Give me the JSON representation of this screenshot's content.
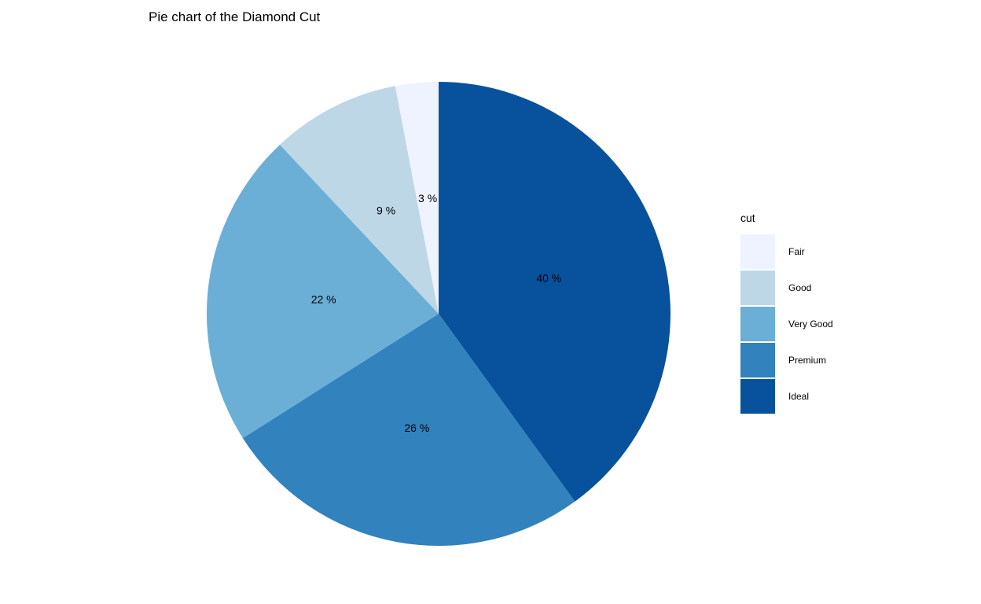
{
  "chart_data": {
    "type": "pie",
    "title": "Pie chart of the Diamond Cut",
    "legend_title": "cut",
    "legend_position": "right",
    "direction": "clockwise",
    "start": "top",
    "slices": [
      {
        "name": "Ideal",
        "value": 40,
        "label": "40 %",
        "color": "#08519c"
      },
      {
        "name": "Premium",
        "value": 26,
        "label": "26 %",
        "color": "#3182bd"
      },
      {
        "name": "Very Good",
        "value": 22,
        "label": "22 %",
        "color": "#6baed6"
      },
      {
        "name": "Good",
        "value": 9,
        "label": "9 %",
        "color": "#bdd7e7"
      },
      {
        "name": "Fair",
        "value": 3,
        "label": "3 %",
        "color": "#eff3ff"
      }
    ],
    "legend_order": [
      "Fair",
      "Good",
      "Very Good",
      "Premium",
      "Ideal"
    ]
  }
}
